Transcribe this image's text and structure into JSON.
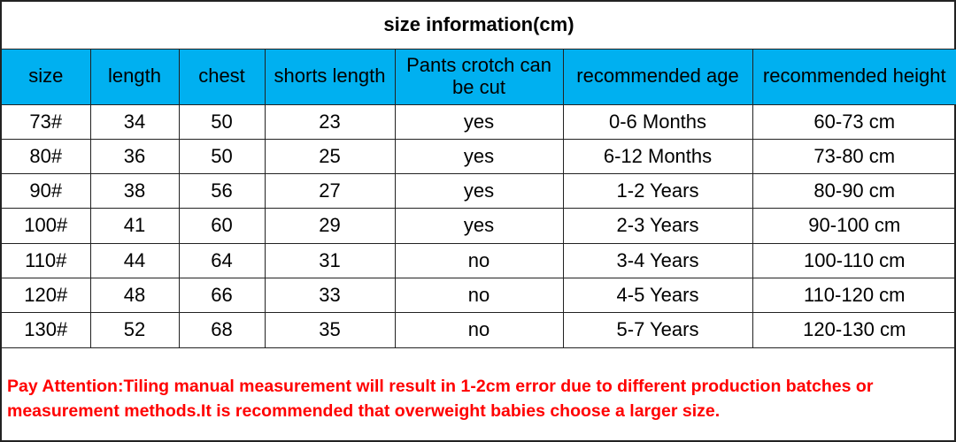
{
  "title": "size information(cm)",
  "headers": [
    "size",
    "length",
    "chest",
    "shorts length",
    "Pants crotch can be cut",
    "recommended age",
    "recommended height"
  ],
  "rows": [
    [
      "73#",
      "34",
      "50",
      "23",
      "yes",
      "0-6 Months",
      "60-73 cm"
    ],
    [
      "80#",
      "36",
      "50",
      "25",
      "yes",
      "6-12 Months",
      "73-80 cm"
    ],
    [
      "90#",
      "38",
      "56",
      "27",
      "yes",
      "1-2 Years",
      "80-90 cm"
    ],
    [
      "100#",
      "41",
      "60",
      "29",
      "yes",
      "2-3 Years",
      "90-100 cm"
    ],
    [
      "110#",
      "44",
      "64",
      "31",
      "no",
      "3-4 Years",
      "100-110 cm"
    ],
    [
      "120#",
      "48",
      "66",
      "33",
      "no",
      "4-5 Years",
      "110-120 cm"
    ],
    [
      "130#",
      "52",
      "68",
      "35",
      "no",
      "5-7 Years",
      "120-130 cm"
    ]
  ],
  "note": "Pay Attention:Tiling manual measurement will result in 1-2cm error due to different production batches or measurement methods.It is recommended that overweight babies choose a larger size.",
  "colors": {
    "header_bg": "#00b0f0",
    "note": "#ff0000"
  }
}
